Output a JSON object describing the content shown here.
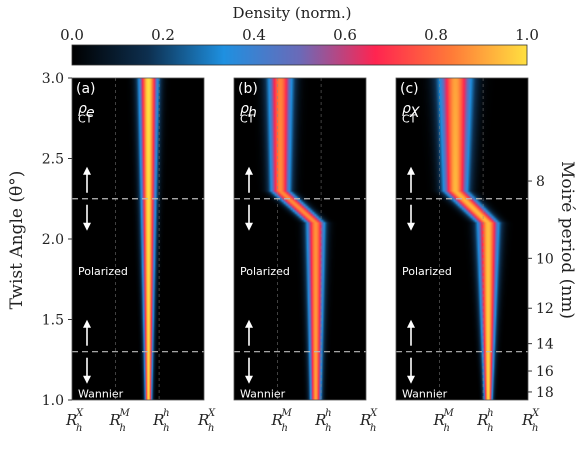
{
  "chart_data": {
    "type": "heatmap",
    "colorbar": {
      "label": "Density (norm.)",
      "min": 0.0,
      "max": 1.0,
      "ticks": [
        "0.0",
        "0.2",
        "0.4",
        "0.6",
        "0.8",
        "1.0"
      ],
      "colors": [
        "#000000",
        "#0d2f4f",
        "#1e90e0",
        "#6a6ab8",
        "#ff2450",
        "#ff7a38",
        "#ffe040"
      ]
    },
    "ylabel": "Twist Angle  (θ°)",
    "ylim": [
      1.0,
      3.0
    ],
    "yticks": [
      "1.0",
      "1.5",
      "2.0",
      "2.5",
      "3.0"
    ],
    "xtick_labels": [
      {
        "base": "R",
        "sub": "h",
        "sup": "X"
      },
      {
        "base": "R",
        "sub": "h",
        "sup": "M"
      },
      {
        "base": "R",
        "sub": "h",
        "sup": "h"
      },
      {
        "base": "R",
        "sub": "h",
        "sup": "X"
      }
    ],
    "right_axis": {
      "label": "Moiré period (nm)",
      "ticks": [
        {
          "label": "8",
          "angle": 2.36
        },
        {
          "label": "10",
          "angle": 1.88
        },
        {
          "label": "12",
          "angle": 1.57
        },
        {
          "label": "14",
          "angle": 1.35
        },
        {
          "label": "16",
          "angle": 1.18
        },
        {
          "label": "18",
          "angle": 1.05
        }
      ]
    },
    "boundaries": [
      2.25,
      1.3
    ],
    "region_labels": [
      {
        "text": "CT",
        "angle": 2.75
      },
      {
        "text": "Polarized",
        "angle": 1.8
      },
      {
        "text": "Wannier",
        "angle": 1.04
      }
    ],
    "panels": [
      {
        "tag": "(a)",
        "density": "ρ",
        "sub": "e",
        "ridges": [
          {
            "pos_high": 0.58,
            "pos_low": 0.58,
            "w_high": 0.07,
            "w_low": 0.025,
            "amp_high": 1.0,
            "amp_low": 1.0
          }
        ]
      },
      {
        "tag": "(b)",
        "density": "ρ",
        "sub": "h",
        "ridges": [
          {
            "pos_high": 0.35,
            "pos_mid": 0.62,
            "pos_low": 0.62,
            "w_high": 0.09,
            "w_low": 0.04,
            "amp_high": 0.85,
            "amp_low": 0.9
          }
        ]
      },
      {
        "tag": "(c)",
        "density": "ρ",
        "sub": "X",
        "ridges": [
          {
            "pos_high": 0.45,
            "pos_mid": 0.7,
            "pos_low": 0.7,
            "w_high": 0.12,
            "w_low": 0.03,
            "amp_high": 0.9,
            "amp_low": 1.0
          }
        ]
      }
    ]
  }
}
